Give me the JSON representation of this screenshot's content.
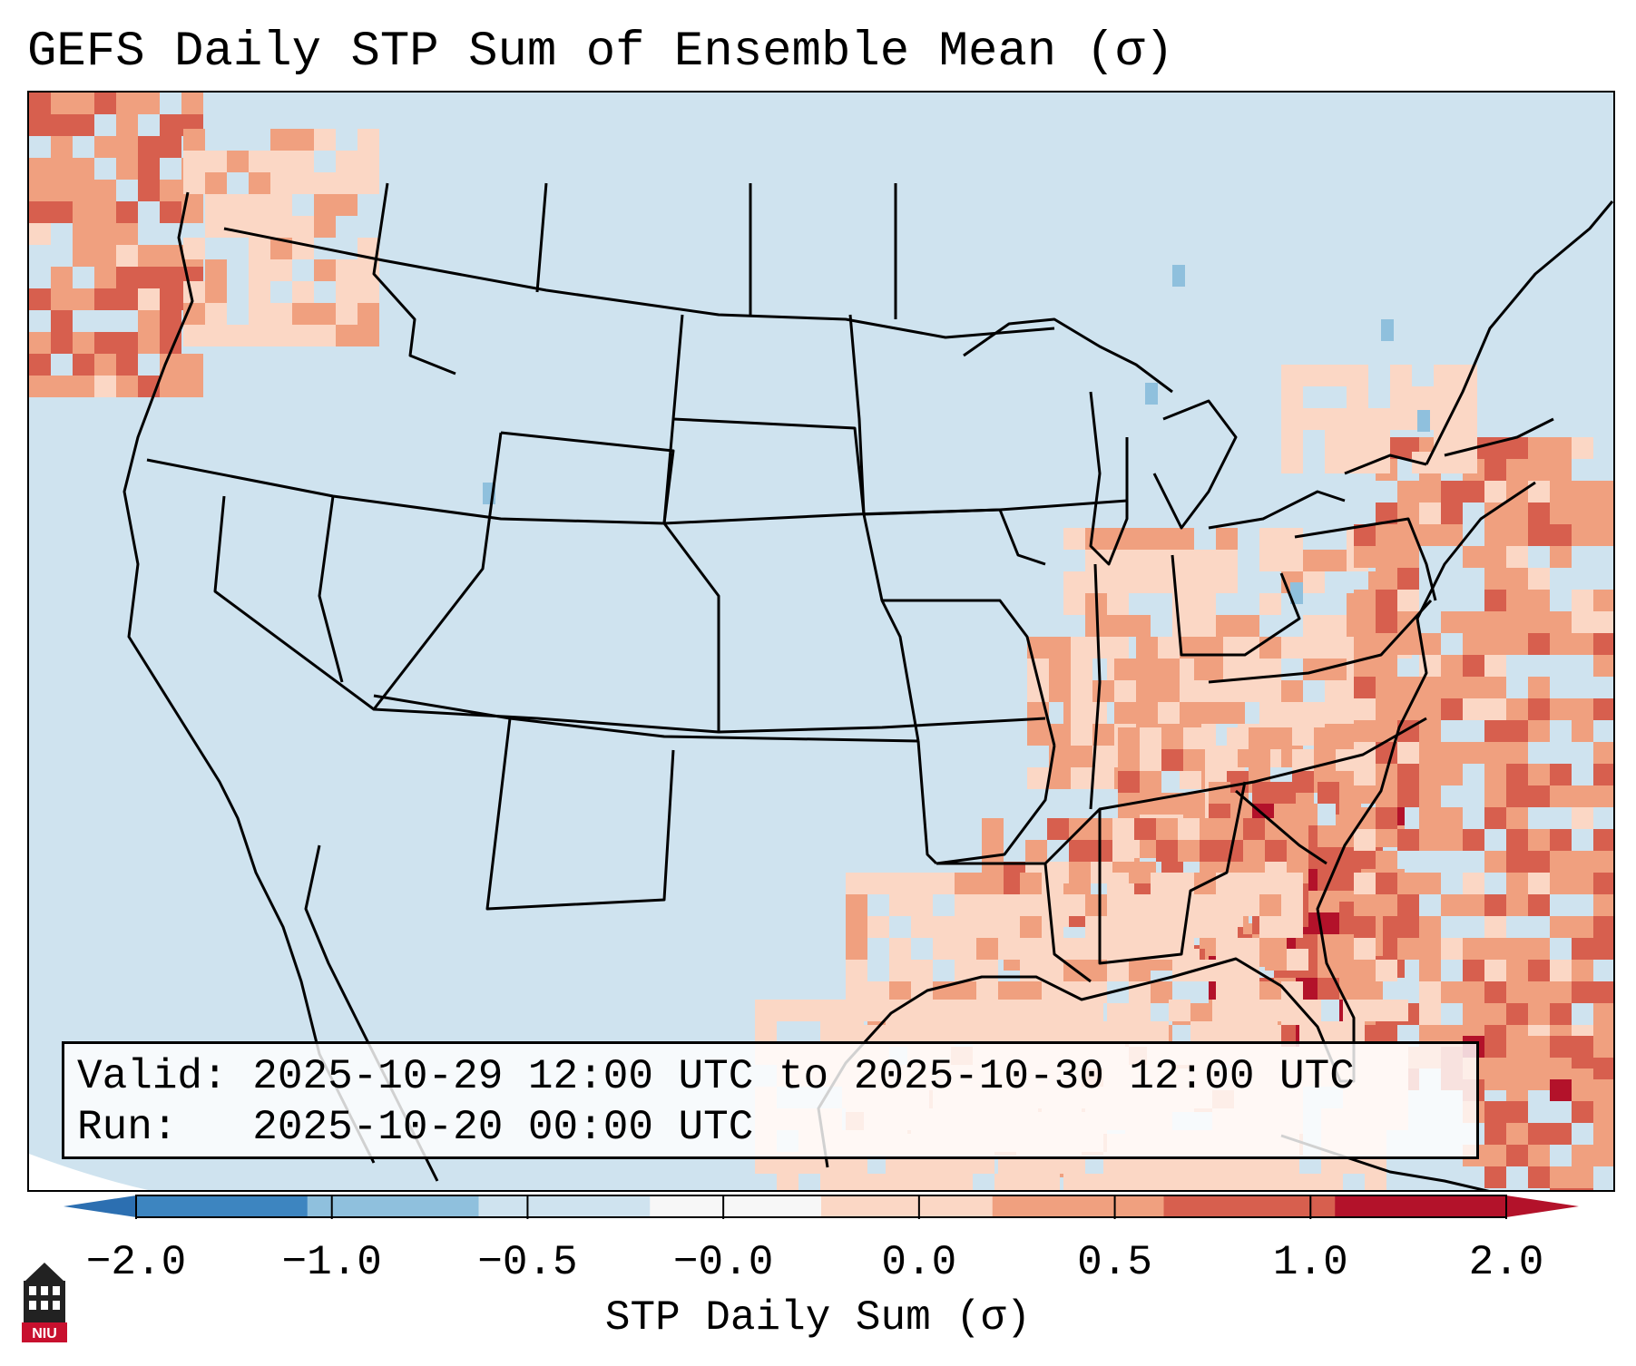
{
  "title": "GEFS Daily STP Sum of Ensemble Mean (σ)",
  "info": {
    "valid_label": "Valid:",
    "valid_value": "2025-10-29 12:00 UTC to 2025-10-30 12:00 UTC",
    "run_label": "Run:",
    "run_value": "2025-10-20 00:00 UTC"
  },
  "colorbar": {
    "label": "STP Daily Sum (σ)",
    "ticks": [
      "−2.0",
      "−1.0",
      "−0.5",
      "−0.0",
      "0.0",
      "0.5",
      "1.0",
      "2.0"
    ],
    "segment_colors": [
      "#3d85c0",
      "#8fc0dd",
      "#cfe3ef",
      "#f7f7f7",
      "#fbd7c5",
      "#f0a07f",
      "#d75f4e",
      "#b3122a"
    ],
    "extend_low_color": "#2c6fb1",
    "extend_high_color": "#b3122a"
  },
  "map": {
    "background_color": "#cfe3ef",
    "anomaly_colors": {
      "light": "#fbd7c5",
      "medium": "#f0a07f",
      "strong": "#d75f4e",
      "extreme": "#b3122a",
      "negative": "#8fc0dd"
    },
    "regions_with_positive_anomaly": [
      "Pacific Northwest coast",
      "Gulf Coast",
      "Southeast",
      "Florida",
      "Atlantic coast",
      "Ohio Valley",
      "Western Atlantic"
    ]
  },
  "logo": {
    "text": "NIU",
    "icon": "university-tower-icon"
  }
}
